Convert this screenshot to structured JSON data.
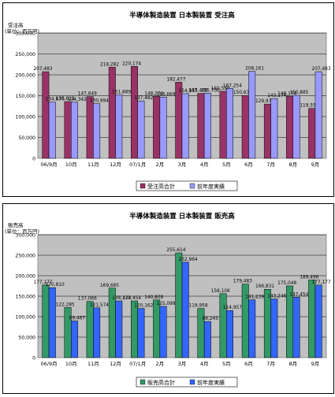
{
  "chart_data": [
    {
      "type": "bar",
      "title": "半導体製造装置 日本製装置 受注高",
      "ylabel": "受注高",
      "unit_label": "(単位：百万円)",
      "ylim": [
        0,
        300000
      ],
      "yticks": [
        "0",
        "50,000",
        "100,000",
        "150,000",
        "200,000",
        "250,000",
        "300,000"
      ],
      "categories": [
        "06/9月",
        "10月",
        "11月",
        "12月",
        "07/1月",
        "2月",
        "3月",
        "4月",
        "5月",
        "6月",
        "7月",
        "8月",
        "9月"
      ],
      "series": [
        {
          "name": "受注高合計",
          "color": "#993366",
          "values": [
            207483,
            135813,
            147649,
            218282,
            220174,
            148270,
            182477,
            155488,
            160599,
            150632,
            129974,
            148174,
            119551
          ],
          "labels": [
            "207,483",
            "135,813",
            "147,649",
            "218,282",
            "220,174",
            "148,270",
            "182,477",
            "155,488",
            "160,599",
            "150,632",
            "129,974",
            "148,174",
            "119,551"
          ]
        },
        {
          "name": "前年度実績",
          "color": "#9999ff",
          "values": [
            134670,
            134342,
            130994,
            151889,
            137482,
            146669,
            154947,
            155700,
            167254,
            208161,
            143174,
            150885,
            207483
          ],
          "labels": [
            "134,670",
            "134,342",
            "130,994",
            "151,889",
            "137,482",
            "146,669",
            "154,947",
            "155,700",
            "167,254",
            "208,161",
            "143,174",
            "150,885",
            "207,483"
          ]
        }
      ]
    },
    {
      "type": "bar",
      "title": "半導体製造装置 日本製装置 販売高",
      "ylabel": "販売高",
      "unit_label": "(単位：百万円)",
      "ylim": [
        0,
        300000
      ],
      "yticks": [
        "0",
        "50,000",
        "100,000",
        "150,000",
        "200,000",
        "250,000",
        "300,000"
      ],
      "categories": [
        "06/9月",
        "10月",
        "11月",
        "12月",
        "07/1月",
        "2月",
        "3月",
        "4月",
        "5月",
        "6月",
        "7月",
        "8月",
        "9月"
      ],
      "series": [
        {
          "name": "販売高合計",
          "color": "#339966",
          "values": [
            177177,
            122285,
            137066,
            169685,
            138454,
            140809,
            255614,
            119958,
            156106,
            179483,
            166831,
            175048,
            189496
          ],
          "labels": [
            "177,177",
            "122,285",
            "137,066",
            "169,685",
            "138,454",
            "140,809",
            "255,614",
            "119,958",
            "156,106",
            "179,483",
            "166,831",
            "175,048",
            "189,496"
          ]
        },
        {
          "name": "前年度実績",
          "color": "#3366ff",
          "values": [
            170810,
            89467,
            121574,
            138377,
            120162,
            125098,
            232964,
            88245,
            114957,
            141239,
            143246,
            147454,
            177177
          ],
          "labels": [
            "170,810",
            "89,467",
            "121,574",
            "138,377",
            "120,162",
            "125,098",
            "232,964",
            "88,245",
            "114,957",
            "141,239",
            "143,246",
            "147,454",
            "177,177"
          ]
        }
      ]
    }
  ]
}
